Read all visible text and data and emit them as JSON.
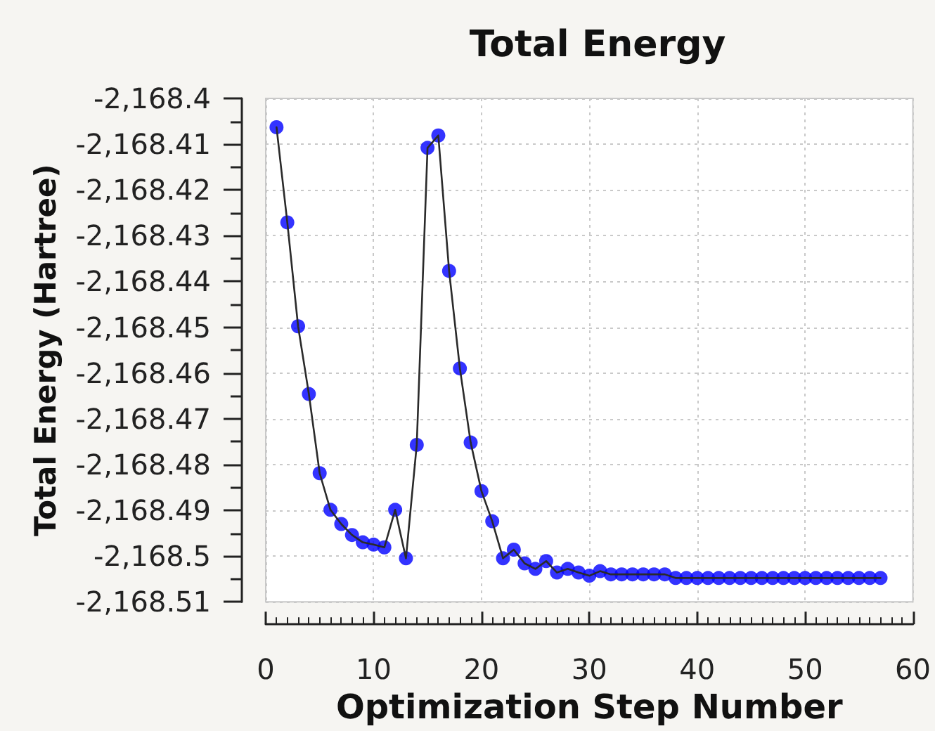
{
  "chart_data": {
    "type": "line",
    "title": "Total Energy",
    "xlabel": "Optimization Step Number",
    "ylabel": "Total Energy (Hartree)",
    "x": [
      1,
      2,
      3,
      4,
      5,
      6,
      7,
      8,
      9,
      10,
      11,
      12,
      13,
      14,
      15,
      16,
      17,
      18,
      19,
      20,
      21,
      22,
      23,
      24,
      25,
      26,
      27,
      28,
      29,
      30,
      31,
      32,
      33,
      34,
      35,
      36,
      37,
      38,
      39,
      40,
      41,
      42,
      43,
      44,
      45,
      46,
      47,
      48,
      49,
      50,
      51,
      52,
      53,
      54,
      55,
      56,
      57
    ],
    "series": [
      {
        "color": "#0000ff",
        "values": [
          -2168.4063,
          -2168.4271,
          -2168.4498,
          -2168.4646,
          -2168.4819,
          -2168.4899,
          -2168.493,
          -2168.4954,
          -2168.497,
          -2168.4975,
          -2168.4981,
          -2168.4899,
          -2168.5005,
          -2168.4757,
          -2168.4108,
          -2168.4081,
          -2168.4377,
          -2168.459,
          -2168.4752,
          -2168.4858,
          -2168.4924,
          -2168.5005,
          -2168.4986,
          -2168.5016,
          -2168.5028,
          -2168.5011,
          -2168.5036,
          -2168.5028,
          -2168.5036,
          -2168.5043,
          -2168.5033,
          -2168.504,
          -2168.504,
          -2168.504,
          -2168.504,
          -2168.504,
          -2168.504,
          -2168.5048,
          -2168.5048,
          -2168.5048,
          -2168.5048,
          -2168.5048,
          -2168.5048,
          -2168.5048,
          -2168.5048,
          -2168.5048,
          -2168.5048,
          -2168.5048,
          -2168.5048,
          -2168.5048,
          -2168.5048,
          -2168.5048,
          -2168.5048,
          -2168.5048,
          -2168.5048,
          -2168.5048,
          -2168.5048
        ]
      }
    ],
    "xlim": [
      0,
      60
    ],
    "xticks": [
      0,
      10,
      20,
      30,
      40,
      50,
      60
    ],
    "ylim": [
      -2168.51,
      -2168.4
    ],
    "yticks": [
      {
        "value": -2168.4,
        "label": "-2,168.4"
      },
      {
        "value": -2168.41,
        "label": "-2,168.41"
      },
      {
        "value": -2168.42,
        "label": "-2,168.42"
      },
      {
        "value": -2168.43,
        "label": "-2,168.43"
      },
      {
        "value": -2168.44,
        "label": "-2,168.44"
      },
      {
        "value": -2168.45,
        "label": "-2,168.45"
      },
      {
        "value": -2168.46,
        "label": "-2,168.46"
      },
      {
        "value": -2168.47,
        "label": "-2,168.47"
      },
      {
        "value": -2168.48,
        "label": "-2,168.48"
      },
      {
        "value": -2168.49,
        "label": "-2,168.49"
      },
      {
        "value": -2168.5,
        "label": "-2,168.5"
      },
      {
        "value": -2168.51,
        "label": "-2,168.51"
      }
    ],
    "grid": true,
    "marker": "circle",
    "line_style": "solid"
  }
}
